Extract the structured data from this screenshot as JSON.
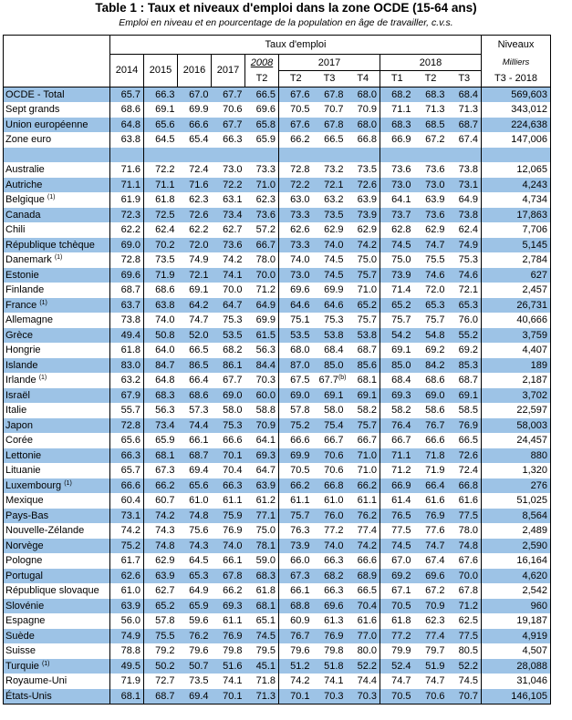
{
  "title": "Table 1 : Taux et niveaux d'emploi dans la zone OCDE (15-64 ans)",
  "subtitle": "Emploi en niveau et en pourcentage de la population en âge de travailler, c.v.s.",
  "header": {
    "rate_group": "Taux d'emploi",
    "levels_title": "Niveaux",
    "levels_unit": "Milliers",
    "levels_period": "T3 - 2018",
    "years": [
      "2014",
      "2015",
      "2016",
      "2017",
      "2008",
      "2017",
      "2018"
    ],
    "quarters": [
      "T2",
      "T2",
      "T3",
      "T4",
      "T1",
      "T2",
      "T3"
    ]
  },
  "rows": [
    {
      "name": "OCDE - Total",
      "note": "",
      "shaded": true,
      "values": [
        "65.7",
        "66.3",
        "67.0",
        "67.7",
        "66.5",
        "67.6",
        "67.8",
        "68.0",
        "68.2",
        "68.3",
        "68.4"
      ],
      "level": "569,603"
    },
    {
      "name": "Sept grands",
      "note": "",
      "shaded": false,
      "values": [
        "68.6",
        "69.1",
        "69.9",
        "70.6",
        "69.6",
        "70.5",
        "70.7",
        "70.9",
        "71.1",
        "71.3",
        "71.3"
      ],
      "level": "343,012"
    },
    {
      "name": "Union européenne",
      "note": "",
      "shaded": true,
      "values": [
        "64.8",
        "65.6",
        "66.6",
        "67.7",
        "65.8",
        "67.6",
        "67.8",
        "68.0",
        "68.3",
        "68.5",
        "68.7"
      ],
      "level": "224,638"
    },
    {
      "name": "Zone euro",
      "note": "",
      "shaded": false,
      "values": [
        "63.8",
        "64.5",
        "65.4",
        "66.3",
        "65.9",
        "66.2",
        "66.5",
        "66.8",
        "66.9",
        "67.2",
        "67.4"
      ],
      "level": "147,006"
    },
    {
      "blank": true,
      "shaded": true
    },
    {
      "name": "Australie",
      "note": "",
      "shaded": false,
      "values": [
        "71.6",
        "72.2",
        "72.4",
        "73.0",
        "73.3",
        "72.8",
        "73.2",
        "73.5",
        "73.6",
        "73.6",
        "73.8"
      ],
      "level": "12,065"
    },
    {
      "name": "Autriche",
      "note": "",
      "shaded": true,
      "values": [
        "71.1",
        "71.1",
        "71.6",
        "72.2",
        "71.0",
        "72.2",
        "72.1",
        "72.6",
        "73.0",
        "73.0",
        "73.1"
      ],
      "level": "4,243"
    },
    {
      "name": "Belgique",
      "note": "(1)",
      "shaded": false,
      "values": [
        "61.9",
        "61.8",
        "62.3",
        "63.1",
        "62.3",
        "63.0",
        "63.2",
        "63.9",
        "64.1",
        "63.9",
        "64.9"
      ],
      "level": "4,734"
    },
    {
      "name": "Canada",
      "note": "",
      "shaded": true,
      "values": [
        "72.3",
        "72.5",
        "72.6",
        "73.4",
        "73.6",
        "73.3",
        "73.5",
        "73.9",
        "73.7",
        "73.6",
        "73.8"
      ],
      "level": "17,863"
    },
    {
      "name": "Chili",
      "note": "",
      "shaded": false,
      "values": [
        "62.2",
        "62.4",
        "62.2",
        "62.7",
        "57.2",
        "62.6",
        "62.9",
        "62.9",
        "62.8",
        "62.9",
        "62.4"
      ],
      "level": "7,706"
    },
    {
      "name": "République tchèque",
      "note": "",
      "shaded": true,
      "values": [
        "69.0",
        "70.2",
        "72.0",
        "73.6",
        "66.7",
        "73.3",
        "74.0",
        "74.2",
        "74.5",
        "74.7",
        "74.9"
      ],
      "level": "5,145"
    },
    {
      "name": "Danemark",
      "note": "(1)",
      "shaded": false,
      "values": [
        "72.8",
        "73.5",
        "74.9",
        "74.2",
        "78.0",
        "74.0",
        "74.5",
        "75.0",
        "75.0",
        "75.5",
        "75.3"
      ],
      "level": "2,784"
    },
    {
      "name": "Estonie",
      "note": "",
      "shaded": true,
      "values": [
        "69.6",
        "71.9",
        "72.1",
        "74.1",
        "70.0",
        "73.0",
        "74.5",
        "75.7",
        "73.9",
        "74.6",
        "74.6"
      ],
      "level": "627"
    },
    {
      "name": "Finlande",
      "note": "",
      "shaded": false,
      "values": [
        "68.7",
        "68.6",
        "69.1",
        "70.0",
        "71.2",
        "69.6",
        "69.9",
        "71.0",
        "71.4",
        "72.0",
        "72.1"
      ],
      "level": "2,457"
    },
    {
      "name": "France",
      "note": "(1)",
      "shaded": true,
      "values": [
        "63.7",
        "63.8",
        "64.2",
        "64.7",
        "64.9",
        "64.6",
        "64.6",
        "65.2",
        "65.2",
        "65.3",
        "65.3"
      ],
      "level": "26,731"
    },
    {
      "name": "Allemagne",
      "note": "",
      "shaded": false,
      "values": [
        "73.8",
        "74.0",
        "74.7",
        "75.3",
        "69.9",
        "75.1",
        "75.3",
        "75.7",
        "75.7",
        "75.7",
        "76.0"
      ],
      "level": "40,666"
    },
    {
      "name": "Grèce",
      "note": "",
      "shaded": true,
      "values": [
        "49.4",
        "50.8",
        "52.0",
        "53.5",
        "61.5",
        "53.5",
        "53.8",
        "53.8",
        "54.2",
        "54.8",
        "55.2"
      ],
      "level": "3,759"
    },
    {
      "name": "Hongrie",
      "note": "",
      "shaded": false,
      "values": [
        "61.8",
        "64.0",
        "66.5",
        "68.2",
        "56.3",
        "68.0",
        "68.4",
        "68.7",
        "69.1",
        "69.2",
        "69.2"
      ],
      "level": "4,407"
    },
    {
      "name": "Islande",
      "note": "",
      "shaded": true,
      "values": [
        "83.0",
        "84.7",
        "86.5",
        "86.1",
        "84.4",
        "87.0",
        "85.0",
        "85.6",
        "85.0",
        "84.2",
        "85.3"
      ],
      "level": "189"
    },
    {
      "name": "Irlande",
      "note": "(1)",
      "shaded": false,
      "values": [
        "63.2",
        "64.8",
        "66.4",
        "67.7",
        "70.3",
        "67.5",
        "67.7",
        "68.1",
        "68.4",
        "68.6",
        "68.7"
      ],
      "level": "2,187",
      "t3note": "(b)"
    },
    {
      "name": "Israël",
      "note": "",
      "shaded": true,
      "values": [
        "67.9",
        "68.3",
        "68.6",
        "69.0",
        "60.0",
        "69.0",
        "69.1",
        "69.1",
        "69.3",
        "69.0",
        "69.1"
      ],
      "level": "3,702"
    },
    {
      "name": "Italie",
      "note": "",
      "shaded": false,
      "values": [
        "55.7",
        "56.3",
        "57.3",
        "58.0",
        "58.8",
        "57.8",
        "58.0",
        "58.2",
        "58.2",
        "58.6",
        "58.5"
      ],
      "level": "22,597"
    },
    {
      "name": "Japon",
      "note": "",
      "shaded": true,
      "values": [
        "72.8",
        "73.4",
        "74.4",
        "75.3",
        "70.9",
        "75.2",
        "75.4",
        "75.7",
        "76.4",
        "76.7",
        "76.9"
      ],
      "level": "58,003"
    },
    {
      "name": "Corée",
      "note": "",
      "shaded": false,
      "values": [
        "65.6",
        "65.9",
        "66.1",
        "66.6",
        "64.1",
        "66.6",
        "66.7",
        "66.7",
        "66.7",
        "66.6",
        "66.5"
      ],
      "level": "24,457"
    },
    {
      "name": "Lettonie",
      "note": "",
      "shaded": true,
      "values": [
        "66.3",
        "68.1",
        "68.7",
        "70.1",
        "69.3",
        "69.9",
        "70.6",
        "71.0",
        "71.1",
        "71.8",
        "72.6"
      ],
      "level": "880"
    },
    {
      "name": "Lituanie",
      "note": "",
      "shaded": false,
      "values": [
        "65.7",
        "67.3",
        "69.4",
        "70.4",
        "64.7",
        "70.5",
        "70.6",
        "71.0",
        "71.2",
        "71.9",
        "72.4"
      ],
      "level": "1,320"
    },
    {
      "name": "Luxembourg",
      "note": "(1)",
      "shaded": true,
      "values": [
        "66.6",
        "66.2",
        "65.6",
        "66.3",
        "63.9",
        "66.2",
        "66.8",
        "66.2",
        "66.9",
        "66.4",
        "66.8"
      ],
      "level": "276"
    },
    {
      "name": "Mexique",
      "note": "",
      "shaded": false,
      "values": [
        "60.4",
        "60.7",
        "61.0",
        "61.1",
        "61.2",
        "61.1",
        "61.0",
        "61.1",
        "61.4",
        "61.6",
        "61.6"
      ],
      "level": "51,025"
    },
    {
      "name": "Pays-Bas",
      "note": "",
      "shaded": true,
      "values": [
        "73.1",
        "74.2",
        "74.8",
        "75.9",
        "77.1",
        "75.7",
        "76.0",
        "76.2",
        "76.5",
        "76.9",
        "77.5"
      ],
      "level": "8,564"
    },
    {
      "name": "Nouvelle-Zélande",
      "note": "",
      "shaded": false,
      "values": [
        "74.2",
        "74.3",
        "75.6",
        "76.9",
        "75.0",
        "76.3",
        "77.2",
        "77.4",
        "77.5",
        "77.6",
        "78.0"
      ],
      "level": "2,489"
    },
    {
      "name": "Norvège",
      "note": "",
      "shaded": true,
      "values": [
        "75.2",
        "74.8",
        "74.3",
        "74.0",
        "78.1",
        "73.9",
        "74.0",
        "74.2",
        "74.5",
        "74.7",
        "74.8"
      ],
      "level": "2,590"
    },
    {
      "name": "Pologne",
      "note": "",
      "shaded": false,
      "values": [
        "61.7",
        "62.9",
        "64.5",
        "66.1",
        "59.0",
        "66.0",
        "66.3",
        "66.6",
        "67.0",
        "67.4",
        "67.6"
      ],
      "level": "16,164"
    },
    {
      "name": "Portugal",
      "note": "",
      "shaded": true,
      "values": [
        "62.6",
        "63.9",
        "65.3",
        "67.8",
        "68.3",
        "67.3",
        "68.2",
        "68.9",
        "69.2",
        "69.6",
        "70.0"
      ],
      "level": "4,620"
    },
    {
      "name": "République slovaque",
      "note": "",
      "shaded": false,
      "values": [
        "61.0",
        "62.7",
        "64.9",
        "66.2",
        "61.8",
        "66.1",
        "66.3",
        "66.5",
        "67.1",
        "67.2",
        "67.8"
      ],
      "level": "2,542"
    },
    {
      "name": "Slovénie",
      "note": "",
      "shaded": true,
      "values": [
        "63.9",
        "65.2",
        "65.9",
        "69.3",
        "68.1",
        "68.8",
        "69.6",
        "70.4",
        "70.5",
        "70.9",
        "71.2"
      ],
      "level": "960"
    },
    {
      "name": "Espagne",
      "note": "",
      "shaded": false,
      "values": [
        "56.0",
        "57.8",
        "59.6",
        "61.1",
        "65.1",
        "60.9",
        "61.3",
        "61.6",
        "61.8",
        "62.3",
        "62.5"
      ],
      "level": "19,187"
    },
    {
      "name": "Suède",
      "note": "",
      "shaded": true,
      "values": [
        "74.9",
        "75.5",
        "76.2",
        "76.9",
        "74.5",
        "76.7",
        "76.9",
        "77.0",
        "77.2",
        "77.4",
        "77.5"
      ],
      "level": "4,919"
    },
    {
      "name": "Suisse",
      "note": "",
      "shaded": false,
      "values": [
        "78.8",
        "79.2",
        "79.6",
        "79.8",
        "79.5",
        "79.6",
        "79.8",
        "80.0",
        "79.9",
        "79.7",
        "80.5"
      ],
      "level": "4,507"
    },
    {
      "name": "Turquie",
      "note": "(1)",
      "shaded": true,
      "values": [
        "49.5",
        "50.2",
        "50.7",
        "51.6",
        "45.1",
        "51.2",
        "51.8",
        "52.2",
        "52.4",
        "51.9",
        "52.2"
      ],
      "level": "28,088"
    },
    {
      "name": "Royaume-Uni",
      "note": "",
      "shaded": false,
      "values": [
        "71.9",
        "72.7",
        "73.5",
        "74.1",
        "71.8",
        "74.2",
        "74.1",
        "74.4",
        "74.7",
        "74.7",
        "74.5"
      ],
      "level": "31,046"
    },
    {
      "name": "États-Unis",
      "note": "",
      "shaded": true,
      "values": [
        "68.1",
        "68.7",
        "69.4",
        "70.1",
        "71.3",
        "70.1",
        "70.3",
        "70.3",
        "70.5",
        "70.6",
        "70.7"
      ],
      "level": "146,105"
    }
  ]
}
